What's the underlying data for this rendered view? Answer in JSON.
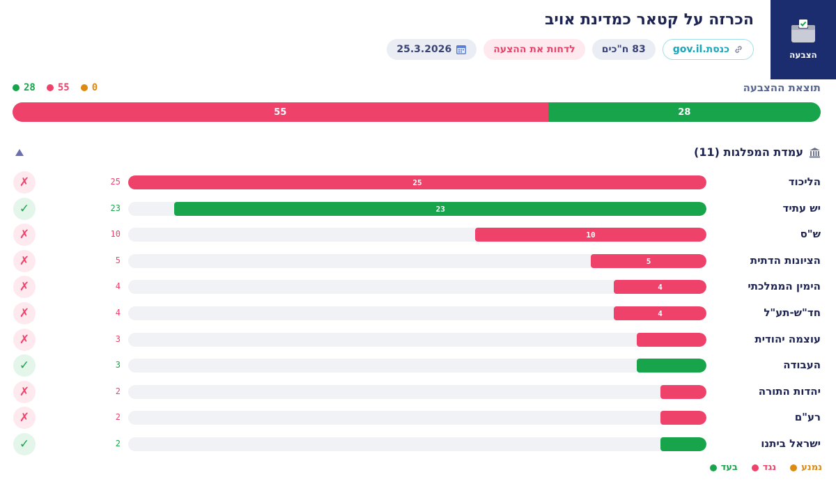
{
  "badge": {
    "label": "הצבעה",
    "icon": "ballot-box-icon"
  },
  "title": "הכרזה על קטאר כמדינת אויב",
  "chips": {
    "date": "25.3.2026",
    "result": "לדחות את ההצעה",
    "voters": "83 ח\"כים",
    "link": "כנסת.gov.il"
  },
  "result_label": "תוצאת ההצבעה",
  "totals": {
    "for": "28",
    "against": "55",
    "abstain": "0"
  },
  "colors": {
    "for": "#17a44b",
    "against": "#ef426b",
    "abstain": "#dd8a12",
    "track": "#f1f2f6"
  },
  "main_bar": {
    "for": 28,
    "against": 55,
    "abstain": 0
  },
  "parties_header": "עמדת המפלגות (11)",
  "parties": [
    {
      "name": "הליכוד",
      "count": "25",
      "vote": "against",
      "fill_label": "25"
    },
    {
      "name": "יש עתיד",
      "count": "23",
      "vote": "for",
      "fill_label": "23"
    },
    {
      "name": "ש\"ס",
      "count": "10",
      "vote": "against",
      "fill_label": "10"
    },
    {
      "name": "הציונות הדתית",
      "count": "5",
      "vote": "against",
      "fill_label": "5"
    },
    {
      "name": "הימין הממלכתי",
      "count": "4",
      "vote": "against",
      "fill_label": "4"
    },
    {
      "name": "חד\"ש-תע\"ל",
      "count": "4",
      "vote": "against",
      "fill_label": "4"
    },
    {
      "name": "עוצמה יהודית",
      "count": "3",
      "vote": "against",
      "fill_label": ""
    },
    {
      "name": "העבודה",
      "count": "3",
      "vote": "for",
      "fill_label": ""
    },
    {
      "name": "יהדות התורה",
      "count": "2",
      "vote": "against",
      "fill_label": ""
    },
    {
      "name": "רע\"ם",
      "count": "2",
      "vote": "against",
      "fill_label": ""
    },
    {
      "name": "ישראל ביתנו",
      "count": "2",
      "vote": "for",
      "fill_label": ""
    }
  ],
  "legend": {
    "for": "בעד",
    "against": "נגד",
    "abstain": "נמנע"
  }
}
